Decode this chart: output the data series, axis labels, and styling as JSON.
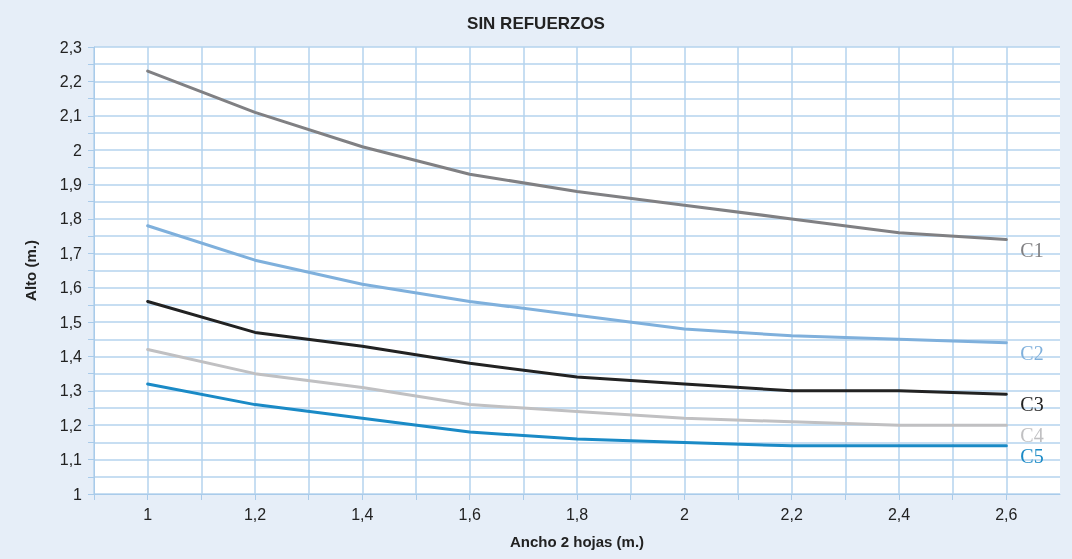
{
  "chart_data": {
    "type": "line",
    "title": "SIN REFUERZOS",
    "xlabel": "Ancho 2 hojas (m.)",
    "ylabel": "Alto (m.)",
    "x": [
      1,
      1.2,
      1.4,
      1.6,
      1.8,
      2,
      2.2,
      2.4,
      2.6
    ],
    "series": [
      {
        "name": "C1",
        "color": "#808083",
        "values": [
          2.23,
          2.11,
          2.01,
          1.93,
          1.88,
          1.84,
          1.8,
          1.76,
          1.74
        ]
      },
      {
        "name": "C2",
        "color": "#7fb0dc",
        "values": [
          1.78,
          1.68,
          1.61,
          1.56,
          1.52,
          1.48,
          1.46,
          1.45,
          1.44
        ]
      },
      {
        "name": "C3",
        "color": "#222222",
        "values": [
          1.56,
          1.47,
          1.43,
          1.38,
          1.34,
          1.32,
          1.3,
          1.3,
          1.29
        ]
      },
      {
        "name": "C4",
        "color": "#c0c0c2",
        "values": [
          1.42,
          1.35,
          1.31,
          1.26,
          1.24,
          1.22,
          1.21,
          1.2,
          1.2
        ]
      },
      {
        "name": "C5",
        "color": "#1a8ac6",
        "values": [
          1.32,
          1.26,
          1.22,
          1.18,
          1.16,
          1.15,
          1.14,
          1.14,
          1.14
        ]
      }
    ],
    "xlim": [
      0.9,
      2.7
    ],
    "xticks": [
      {
        "value": 0.9,
        "label": null
      },
      {
        "value": 1,
        "label": "1"
      },
      {
        "value": 1.1,
        "label": null
      },
      {
        "value": 1.2,
        "label": "1,2"
      },
      {
        "value": 1.3,
        "label": null
      },
      {
        "value": 1.4,
        "label": "1,4"
      },
      {
        "value": 1.5,
        "label": null
      },
      {
        "value": 1.6,
        "label": "1,6"
      },
      {
        "value": 1.7,
        "label": null
      },
      {
        "value": 1.8,
        "label": "1,8"
      },
      {
        "value": 1.9,
        "label": null
      },
      {
        "value": 2,
        "label": "2"
      },
      {
        "value": 2.1,
        "label": null
      },
      {
        "value": 2.2,
        "label": "2,2"
      },
      {
        "value": 2.3,
        "label": null
      },
      {
        "value": 2.4,
        "label": "2,4"
      },
      {
        "value": 2.5,
        "label": null
      },
      {
        "value": 2.6,
        "label": "2,6"
      }
    ],
    "ylim": [
      1,
      2.3
    ],
    "yticks": [
      1,
      {
        "value": 1.05,
        "label": null
      },
      {
        "value": 1.1,
        "label": "1,1"
      },
      {
        "value": 1.15,
        "label": null
      },
      {
        "value": 1.2,
        "label": "1,2"
      },
      {
        "value": 1.25,
        "label": null
      },
      {
        "value": 1.3,
        "label": "1,3"
      },
      {
        "value": 1.35,
        "label": null
      },
      {
        "value": 1.4,
        "label": "1,4"
      },
      {
        "value": 1.45,
        "label": null
      },
      {
        "value": 1.5,
        "label": "1,5"
      },
      {
        "value": 1.55,
        "label": null
      },
      {
        "value": 1.6,
        "label": "1,6"
      },
      {
        "value": 1.65,
        "label": null
      },
      {
        "value": 1.7,
        "label": "1,7"
      },
      {
        "value": 1.75,
        "label": null
      },
      {
        "value": 1.8,
        "label": "1,8"
      },
      {
        "value": 1.85,
        "label": null
      },
      {
        "value": 1.9,
        "label": "1,9"
      },
      {
        "value": 1.95,
        "label": null
      },
      {
        "value": 2,
        "label": "2"
      },
      {
        "value": 2.05,
        "label": null
      },
      {
        "value": 2.1,
        "label": "2,1"
      },
      {
        "value": 2.15,
        "label": null
      },
      {
        "value": 2.2,
        "label": "2,2"
      },
      {
        "value": 2.25,
        "label": null
      },
      {
        "value": 2.3,
        "label": "2,3"
      }
    ],
    "grid": true,
    "legend": false,
    "marker": "none",
    "line_style": "solid"
  }
}
